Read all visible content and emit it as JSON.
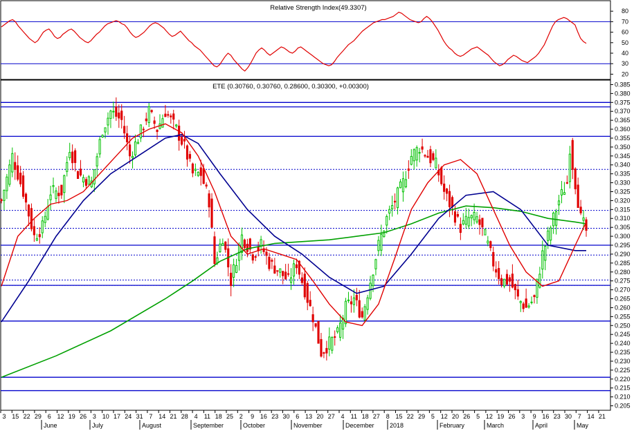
{
  "colors": {
    "rsi_line": "#e00000",
    "level_line": "#0000cc",
    "up_candle": "#00c000",
    "down_candle": "#e00000",
    "sma_short": "#e00000",
    "sma_mid": "#000090",
    "sma_long": "#00a000",
    "grid_dot": "#0000cc"
  },
  "chart_data": [
    {
      "type": "line",
      "title": "Relative Strength Index(49.3307)",
      "ylim": [
        15,
        90
      ],
      "yticks": [
        20,
        30,
        40,
        50,
        60,
        70,
        80
      ],
      "levels": [
        30,
        70
      ],
      "series": [
        {
          "values": [
            65,
            67,
            69,
            71,
            72,
            70,
            66,
            63,
            60,
            57,
            54,
            52,
            50,
            52,
            56,
            60,
            62,
            63,
            60,
            56,
            54,
            55,
            58,
            60,
            62,
            63,
            61,
            58,
            55,
            53,
            51,
            50,
            52,
            55,
            58,
            60,
            63,
            66,
            68,
            69,
            70,
            71,
            70,
            68,
            67,
            64,
            60,
            57,
            55,
            56,
            58,
            60,
            63,
            66,
            68,
            69,
            68,
            66,
            64,
            61,
            58,
            56,
            57,
            59,
            61,
            58,
            55,
            52,
            50,
            47,
            45,
            43,
            40,
            37,
            34,
            31,
            28,
            27,
            29,
            33,
            37,
            40,
            38,
            34,
            31,
            28,
            25,
            23,
            26,
            30,
            35,
            40,
            43,
            45,
            43,
            40,
            38,
            40,
            42,
            44,
            46,
            45,
            43,
            41,
            40,
            42,
            45,
            46,
            44,
            42,
            40,
            38,
            36,
            34,
            32,
            30,
            29,
            28,
            29,
            32,
            36,
            39,
            42,
            45,
            48,
            50,
            52,
            55,
            58,
            61,
            63,
            65,
            67,
            69,
            70,
            71,
            72,
            72,
            73,
            74,
            75,
            77,
            79,
            78,
            76,
            74,
            72,
            71,
            70,
            69,
            70,
            73,
            75,
            73,
            70,
            66,
            62,
            57,
            52,
            48,
            45,
            43,
            40,
            38,
            37,
            38,
            40,
            42,
            44,
            45,
            46,
            44,
            42,
            40,
            38,
            35,
            32,
            30,
            28,
            29,
            31,
            34,
            36,
            38,
            37,
            35,
            33,
            32,
            31,
            33,
            35,
            37,
            40,
            44,
            48,
            54,
            60,
            66,
            70,
            72,
            73,
            74,
            73,
            71,
            69,
            67,
            60,
            54,
            51,
            49.33
          ]
        }
      ]
    },
    {
      "type": "candlestick",
      "title": "ETE (0.30760, 0.30760, 0.28600, 0.30300, +0.00300)",
      "ylim": [
        0.2025,
        0.3875
      ],
      "yticks": [
        0.205,
        0.21,
        0.215,
        0.22,
        0.225,
        0.23,
        0.235,
        0.24,
        0.245,
        0.25,
        0.255,
        0.26,
        0.265,
        0.27,
        0.275,
        0.28,
        0.285,
        0.29,
        0.295,
        0.3,
        0.305,
        0.31,
        0.315,
        0.32,
        0.325,
        0.33,
        0.335,
        0.34,
        0.345,
        0.35,
        0.355,
        0.36,
        0.365,
        0.37,
        0.375,
        0.38,
        0.385
      ],
      "ytick_labels": [
        "0.205",
        "0.210",
        "0.215",
        "0.220",
        "0.225",
        "0.230",
        "0.235",
        "0.240",
        "0.245",
        "0.250",
        "0.255",
        "0.260",
        "0.265",
        "0.270",
        "0.275",
        "0.280",
        "0.285",
        "0.290",
        "0.295",
        "0.300",
        "0.305",
        "0.310",
        "0.315",
        "0.320",
        "0.325",
        "0.330",
        "0.335",
        "0.340",
        "0.345",
        "0.350",
        "0.355",
        "0.360",
        "0.365",
        "0.370",
        "0.375",
        "0.380",
        "0.385"
      ],
      "close_anchors": [
        [
          0,
          0.32
        ],
        [
          4,
          0.345
        ],
        [
          8,
          0.325
        ],
        [
          12,
          0.3
        ],
        [
          15,
          0.305
        ],
        [
          18,
          0.325
        ],
        [
          22,
          0.325
        ],
        [
          25,
          0.35
        ],
        [
          28,
          0.335
        ],
        [
          33,
          0.33
        ],
        [
          37,
          0.36
        ],
        [
          40,
          0.37
        ],
        [
          44,
          0.365
        ],
        [
          47,
          0.345
        ],
        [
          50,
          0.355
        ],
        [
          54,
          0.37
        ],
        [
          57,
          0.36
        ],
        [
          60,
          0.37
        ],
        [
          64,
          0.36
        ],
        [
          67,
          0.35
        ],
        [
          70,
          0.335
        ],
        [
          73,
          0.335
        ],
        [
          76,
          0.32
        ],
        [
          78,
          0.285
        ],
        [
          81,
          0.3
        ],
        [
          84,
          0.275
        ],
        [
          88,
          0.3
        ],
        [
          92,
          0.29
        ],
        [
          95,
          0.295
        ],
        [
          98,
          0.285
        ],
        [
          102,
          0.28
        ],
        [
          105,
          0.275
        ],
        [
          108,
          0.285
        ],
        [
          111,
          0.27
        ],
        [
          114,
          0.255
        ],
        [
          117,
          0.235
        ],
        [
          120,
          0.24
        ],
        [
          123,
          0.245
        ],
        [
          126,
          0.26
        ],
        [
          129,
          0.265
        ],
        [
          132,
          0.255
        ],
        [
          135,
          0.275
        ],
        [
          138,
          0.295
        ],
        [
          141,
          0.31
        ],
        [
          144,
          0.32
        ],
        [
          147,
          0.33
        ],
        [
          150,
          0.345
        ],
        [
          153,
          0.35
        ],
        [
          156,
          0.345
        ],
        [
          159,
          0.34
        ],
        [
          162,
          0.325
        ],
        [
          165,
          0.315
        ],
        [
          168,
          0.305
        ],
        [
          171,
          0.31
        ],
        [
          174,
          0.31
        ],
        [
          177,
          0.3
        ],
        [
          180,
          0.285
        ],
        [
          183,
          0.275
        ],
        [
          186,
          0.275
        ],
        [
          189,
          0.265
        ],
        [
          192,
          0.26
        ],
        [
          195,
          0.265
        ],
        [
          198,
          0.29
        ],
        [
          201,
          0.305
        ],
        [
          204,
          0.32
        ],
        [
          207,
          0.33
        ],
        [
          208,
          0.35
        ],
        [
          210,
          0.33
        ],
        [
          212,
          0.31
        ],
        [
          214,
          0.303
        ]
      ],
      "lines": [
        {
          "name": "sma_short",
          "values_x": [
            0,
            6,
            12,
            18,
            24,
            30,
            36,
            42,
            48,
            54,
            60,
            66,
            72,
            78,
            84,
            90,
            96,
            102,
            108,
            114,
            120,
            126,
            132,
            138,
            144,
            150,
            156,
            162,
            168,
            174,
            180,
            186,
            192,
            198,
            204,
            210,
            214
          ],
          "values_y": [
            0.272,
            0.3,
            0.31,
            0.318,
            0.32,
            0.325,
            0.335,
            0.345,
            0.355,
            0.36,
            0.363,
            0.358,
            0.345,
            0.325,
            0.3,
            0.29,
            0.293,
            0.29,
            0.287,
            0.275,
            0.262,
            0.252,
            0.25,
            0.262,
            0.288,
            0.315,
            0.33,
            0.34,
            0.343,
            0.335,
            0.315,
            0.295,
            0.28,
            0.272,
            0.275,
            0.295,
            0.308
          ]
        },
        {
          "name": "sma_mid",
          "values_x": [
            0,
            10,
            20,
            30,
            40,
            50,
            60,
            66,
            72,
            80,
            90,
            100,
            110,
            120,
            130,
            140,
            150,
            160,
            170,
            180,
            190,
            195,
            200,
            210,
            214
          ],
          "values_y": [
            0.252,
            0.275,
            0.3,
            0.32,
            0.335,
            0.345,
            0.355,
            0.357,
            0.352,
            0.335,
            0.315,
            0.3,
            0.29,
            0.277,
            0.268,
            0.272,
            0.29,
            0.31,
            0.323,
            0.325,
            0.315,
            0.305,
            0.295,
            0.292,
            0.292
          ]
        },
        {
          "name": "sma_long",
          "values_x": [
            0,
            20,
            40,
            60,
            70,
            80,
            90,
            100,
            110,
            120,
            130,
            140,
            150,
            160,
            170,
            180,
            190,
            200,
            210,
            214
          ],
          "values_y": [
            0.221,
            0.233,
            0.247,
            0.265,
            0.275,
            0.286,
            0.293,
            0.296,
            0.297,
            0.298,
            0.3,
            0.302,
            0.307,
            0.313,
            0.317,
            0.316,
            0.314,
            0.31,
            0.308,
            0.307
          ]
        }
      ],
      "solid_levels": [
        0.375,
        0.3725,
        0.356,
        0.295,
        0.2725,
        0.2525,
        0.221,
        0.2135
      ],
      "dotted_levels": [
        0.3375,
        0.3145,
        0.3045,
        0.2895,
        0.2755,
        0.2725
      ]
    }
  ],
  "xaxis": {
    "day_labels": [
      "3",
      "15",
      "22",
      "29",
      "6",
      "12",
      "19",
      "26",
      "3",
      "10",
      "17",
      "24",
      "31",
      "7",
      "14",
      "21",
      "28",
      "4",
      "11",
      "18",
      "25",
      "2",
      "9",
      "16",
      "23",
      "30",
      "6",
      "13",
      "20",
      "27",
      "4",
      "11",
      "18",
      "27",
      "8",
      "15",
      "22",
      "29",
      "5",
      "12",
      "20",
      "26",
      "5",
      "12",
      "19",
      "26",
      "3",
      "9",
      "16",
      "23",
      "30",
      "7",
      "14",
      "21"
    ],
    "month_labels": [
      "June",
      "July",
      "August",
      "September",
      "October",
      "November",
      "December",
      "2018",
      "February",
      "March",
      "April",
      "May"
    ]
  }
}
